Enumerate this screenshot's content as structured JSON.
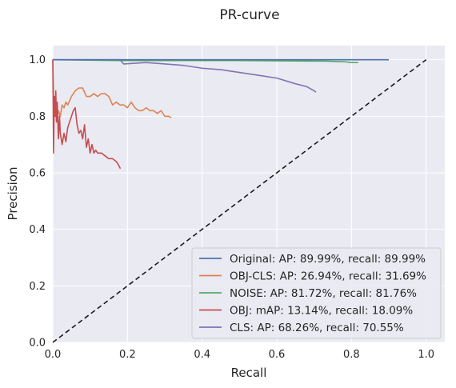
{
  "chart_data": {
    "type": "line",
    "title": "PR-curve",
    "xlabel": "Recall",
    "ylabel": "Precision",
    "xlim": [
      0,
      1.05
    ],
    "ylim": [
      0,
      1.05
    ],
    "xticks": [
      0.0,
      0.2,
      0.4,
      0.6,
      0.8,
      1.0
    ],
    "xtick_labels": [
      "0.0",
      "0.2",
      "0.4",
      "0.6",
      "0.8",
      "1.0"
    ],
    "yticks": [
      0.0,
      0.2,
      0.4,
      0.6,
      0.8,
      1.0
    ],
    "ytick_labels": [
      "0.0",
      "0.2",
      "0.4",
      "0.6",
      "0.8",
      "1.0"
    ],
    "grid": true,
    "legend_position": "lower-right",
    "series": [
      {
        "name": "Original: AP: 89.99%, recall: 89.99%",
        "color": "#4c72b0",
        "x": [
          0.0,
          0.9
        ],
        "y": [
          1.0,
          1.0
        ]
      },
      {
        "name": "OBJ-CLS: AP: 26.94%, recall: 31.69%",
        "color": "#dd8452",
        "x": [
          0.0,
          0.003,
          0.006,
          0.01,
          0.015,
          0.02,
          0.025,
          0.03,
          0.035,
          0.04,
          0.05,
          0.06,
          0.07,
          0.08,
          0.09,
          0.1,
          0.11,
          0.12,
          0.13,
          0.14,
          0.15,
          0.16,
          0.17,
          0.18,
          0.19,
          0.2,
          0.21,
          0.22,
          0.23,
          0.24,
          0.25,
          0.26,
          0.27,
          0.28,
          0.29,
          0.3,
          0.31,
          0.317
        ],
        "y": [
          1.0,
          0.8,
          0.84,
          0.78,
          0.82,
          0.8,
          0.84,
          0.83,
          0.85,
          0.84,
          0.87,
          0.89,
          0.9,
          0.9,
          0.87,
          0.87,
          0.88,
          0.87,
          0.88,
          0.88,
          0.87,
          0.84,
          0.85,
          0.84,
          0.84,
          0.83,
          0.85,
          0.83,
          0.82,
          0.82,
          0.83,
          0.82,
          0.82,
          0.81,
          0.82,
          0.8,
          0.8,
          0.795
        ]
      },
      {
        "name": "NOISE: AP: 81.72%, recall: 81.76%",
        "color": "#55a868",
        "x": [
          0.0,
          0.18,
          0.5,
          0.73,
          0.78,
          0.8,
          0.818
        ],
        "y": [
          1.0,
          0.997,
          0.997,
          0.995,
          0.993,
          0.99,
          0.99
        ]
      },
      {
        "name": "OBJ: mAP: 13.14%, recall: 18.09%",
        "color": "#c44e52",
        "x": [
          0.0,
          0.002,
          0.004,
          0.006,
          0.008,
          0.01,
          0.012,
          0.015,
          0.018,
          0.02,
          0.025,
          0.03,
          0.035,
          0.04,
          0.045,
          0.05,
          0.055,
          0.06,
          0.065,
          0.07,
          0.075,
          0.08,
          0.085,
          0.09,
          0.095,
          0.1,
          0.105,
          0.11,
          0.115,
          0.12,
          0.13,
          0.14,
          0.15,
          0.16,
          0.17,
          0.175,
          0.181
        ],
        "y": [
          1.0,
          0.67,
          0.87,
          0.8,
          0.89,
          0.78,
          0.85,
          0.72,
          0.8,
          0.74,
          0.7,
          0.74,
          0.71,
          0.76,
          0.78,
          0.8,
          0.82,
          0.83,
          0.77,
          0.74,
          0.75,
          0.72,
          0.77,
          0.69,
          0.72,
          0.67,
          0.7,
          0.67,
          0.68,
          0.67,
          0.67,
          0.66,
          0.65,
          0.65,
          0.64,
          0.63,
          0.615
        ]
      },
      {
        "name": "CLS: AP: 68.26%, recall: 70.55%",
        "color": "#8172b3",
        "x": [
          0.0,
          0.18,
          0.19,
          0.25,
          0.3,
          0.35,
          0.4,
          0.45,
          0.5,
          0.55,
          0.6,
          0.65,
          0.68,
          0.7,
          0.705
        ],
        "y": [
          1.0,
          1.0,
          0.985,
          0.99,
          0.985,
          0.98,
          0.97,
          0.965,
          0.955,
          0.945,
          0.935,
          0.915,
          0.905,
          0.89,
          0.885
        ]
      }
    ],
    "reference_line": {
      "x": [
        0,
        1
      ],
      "y": [
        0,
        1
      ],
      "color": "#1a1a1a",
      "style": "dashed"
    }
  }
}
